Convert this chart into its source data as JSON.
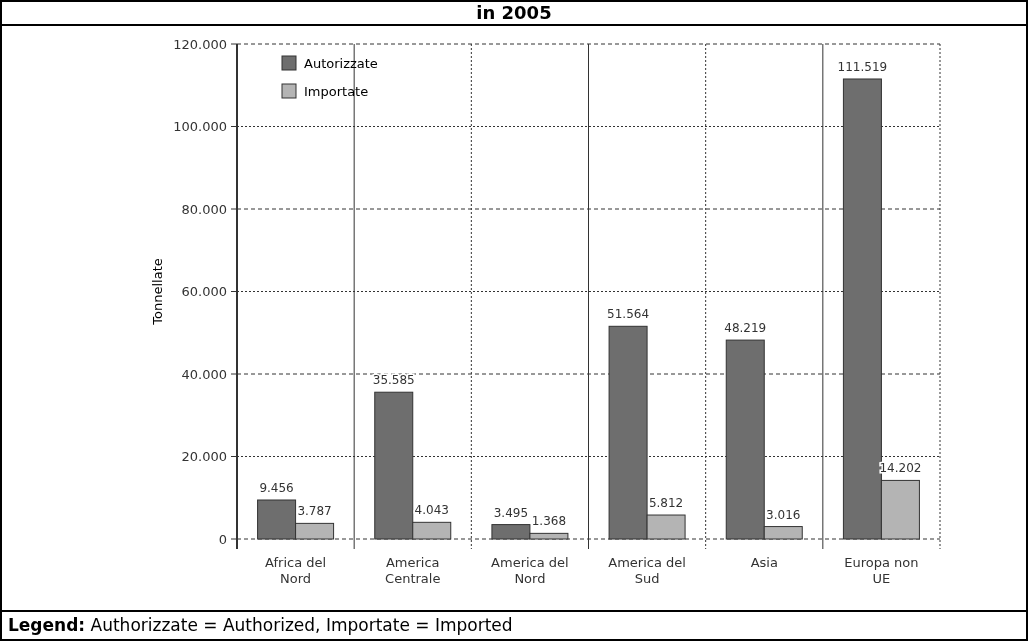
{
  "chart_data": {
    "type": "bar",
    "title": "in 2005",
    "ylabel": "Tonnellate",
    "categories": [
      "Africa del Nord",
      "America Centrale",
      "America del Nord",
      "America del Sud",
      "Asia",
      "Europa non UE"
    ],
    "series": [
      {
        "name": "Autorizzate",
        "color": "#6e6e6e",
        "values": [
          9456,
          35585,
          3495,
          51564,
          48219,
          111519
        ],
        "value_labels": [
          "9.456",
          "35.585",
          "3.495",
          "51.564",
          "48.219",
          "111.519"
        ]
      },
      {
        "name": "Importate",
        "color": "#b4b4b4",
        "values": [
          3787,
          4043,
          1368,
          5812,
          3016,
          14202
        ],
        "value_labels": [
          "3.787",
          "4.043",
          "1.368",
          "5.812",
          "3.016",
          "14.202"
        ]
      }
    ],
    "ylim": [
      0,
      120000
    ],
    "yticks": [
      0,
      {
        "value": 20000,
        "label": "20.000"
      },
      {
        "value": 40000,
        "label": "40.000"
      },
      {
        "value": 60000,
        "label": "60.000"
      },
      {
        "value": 80000,
        "label": "80.000"
      },
      {
        "value": 100000,
        "label": "100.000"
      },
      {
        "value": 120000,
        "label": "120.000"
      }
    ],
    "grid": true,
    "legend": "top left",
    "annotations": [
      "Legend: Authorizzate = Authorized, Importate = Imported"
    ]
  }
}
